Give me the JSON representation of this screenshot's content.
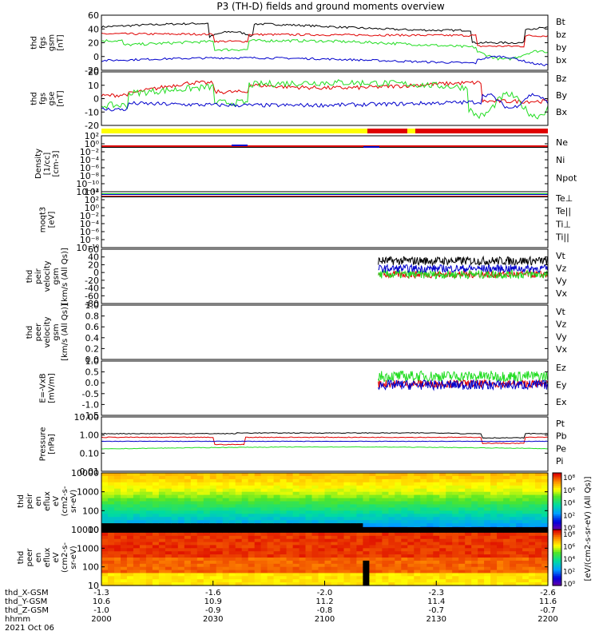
{
  "title": "P3 (TH-D) fields and ground moments overview",
  "date_label": "2021 Oct 06",
  "colors": {
    "black": "#000000",
    "red": "#e00000",
    "green": "#22dd22",
    "blue": "#0000cc",
    "yellow": "#ffff00"
  },
  "orbit": {
    "row_labels": [
      "thd_X-GSM",
      "thd_Y-GSM",
      "thd_Z-GSM",
      "hhmm"
    ],
    "columns": [
      {
        "x": "-1.3",
        "y": "10.6",
        "z": "-1.0",
        "t": "2000"
      },
      {
        "x": "-1.6",
        "y": "10.9",
        "z": "-0.9",
        "t": "2030"
      },
      {
        "x": "-2.0",
        "y": "11.2",
        "z": "-0.8",
        "t": "2100"
      },
      {
        "x": "-2.3",
        "y": "11.4",
        "z": "-0.7",
        "t": "2130"
      },
      {
        "x": "-2.6",
        "y": "11.6",
        "z": "-0.7",
        "t": "2200"
      }
    ]
  },
  "chart_data": [
    {
      "type": "line",
      "id": "fgs_gsm",
      "ylabel": [
        "thd",
        "fgs",
        "gsm",
        "[nT]"
      ],
      "ylim": [
        -20,
        60
      ],
      "ticks": [
        "60",
        "40",
        "20",
        "0",
        "-20"
      ],
      "legend": [
        {
          "name": "Bt",
          "color": "#000000"
        },
        {
          "name": "bz",
          "color": "#e00000"
        },
        {
          "name": "by",
          "color": "#22dd22"
        },
        {
          "name": "bx",
          "color": "#0000cc"
        }
      ]
    },
    {
      "type": "line",
      "id": "fgs_gse",
      "ylabel": [
        "thd",
        "fgs",
        "gse",
        "[nT]"
      ],
      "ylim": [
        -20,
        20
      ],
      "ticks": [
        "20",
        "10",
        "0",
        "-10",
        "-20"
      ],
      "legend": [
        {
          "name": "Bz",
          "color": "#e00000"
        },
        {
          "name": "By",
          "color": "#22dd22"
        },
        {
          "name": "Bx",
          "color": "#0000cc"
        }
      ]
    },
    {
      "type": "line",
      "id": "density",
      "ylabel": [
        "Density",
        "[1/cc]",
        "[cm-3]"
      ],
      "scale": "log",
      "ticks": [
        "10²",
        "10⁰",
        "10⁻²",
        "10⁻⁴",
        "10⁻⁶",
        "10⁻⁸",
        "10⁻¹⁰",
        "10⁻¹²"
      ],
      "legend": [
        {
          "name": "Ne",
          "color": "#e00000"
        },
        {
          "name": "Ni",
          "color": "#000000"
        },
        {
          "name": "Npot",
          "color": "#0000cc"
        }
      ]
    },
    {
      "type": "line",
      "id": "temperature",
      "ylabel": [
        "moqt3",
        "[eV]"
      ],
      "scale": "log",
      "ticks": [
        "10⁴",
        "10²",
        "10⁰",
        "10⁻²",
        "10⁻⁴",
        "10⁻⁶",
        "10⁻⁸",
        "10⁻¹⁰"
      ],
      "legend": [
        {
          "name": "Te⊥",
          "color": "#e00000"
        },
        {
          "name": "Te||",
          "color": "#000000"
        },
        {
          "name": "Ti⊥",
          "color": "#0000cc"
        },
        {
          "name": "Ti||",
          "color": "#22dd22"
        }
      ]
    },
    {
      "type": "line",
      "id": "ion_velocity",
      "ylabel": [
        "thd",
        "peir",
        "velocity",
        "gsm",
        "[km/s (All Qs)]"
      ],
      "ylim": [
        -80,
        60
      ],
      "ticks": [
        "60",
        "40",
        "20",
        "0",
        "-20",
        "-40",
        "-60",
        "-80"
      ],
      "legend": [
        {
          "name": "Vt",
          "color": "#000000"
        },
        {
          "name": "Vz",
          "color": "#e00000"
        },
        {
          "name": "Vy",
          "color": "#22dd22"
        },
        {
          "name": "Vx",
          "color": "#0000cc"
        }
      ]
    },
    {
      "type": "line",
      "id": "electron_velocity",
      "ylabel": [
        "thd",
        "peer",
        "velocity",
        "gsm",
        "[km/s (All Qs)]"
      ],
      "ylim": [
        0,
        1
      ],
      "ticks": [
        "1.0",
        "0.8",
        "0.6",
        "0.4",
        "0.2",
        "0.0"
      ],
      "legend": [
        {
          "name": "Vt",
          "color": "#000000"
        },
        {
          "name": "Vz",
          "color": "#e00000"
        },
        {
          "name": "Vy",
          "color": "#22dd22"
        },
        {
          "name": "Vx",
          "color": "#0000cc"
        }
      ]
    },
    {
      "type": "line",
      "id": "efield",
      "ylabel": [
        "E=-VxB",
        "[mV/m]"
      ],
      "ylim": [
        -1.5,
        1.0
      ],
      "ticks": [
        "1.0",
        "0.5",
        "0.0",
        "-0.5",
        "-1.0",
        "-1.5"
      ],
      "legend": [
        {
          "name": "Ez",
          "color": "#e00000"
        },
        {
          "name": "Ey",
          "color": "#22dd22"
        },
        {
          "name": "Ex",
          "color": "#0000cc"
        }
      ]
    },
    {
      "type": "line",
      "id": "pressure",
      "ylabel": [
        "Pressure",
        "[nPa]"
      ],
      "scale": "log",
      "ylim": [
        0.01,
        10
      ],
      "ticks": [
        "10.00",
        "1.00",
        "0.10",
        "0.01"
      ],
      "legend": [
        {
          "name": "Pt",
          "color": "#000000"
        },
        {
          "name": "Pb",
          "color": "#e00000"
        },
        {
          "name": "Pe",
          "color": "#22dd22"
        },
        {
          "name": "Pi",
          "color": "#0000cc"
        }
      ]
    },
    {
      "type": "heatmap",
      "id": "ion_eflux",
      "ylabel": [
        "thd",
        "peir",
        "en",
        "eflux",
        "eV",
        "(cm2-s-",
        "sr-eV)"
      ],
      "scale": "log",
      "ticks": [
        "10000",
        "1000",
        "100",
        "10"
      ]
    },
    {
      "type": "heatmap",
      "id": "electron_eflux",
      "ylabel": [
        "thd",
        "peer",
        "en",
        "eflux",
        "eV",
        "(cm2-s-",
        "sr-eV)"
      ],
      "scale": "log",
      "ticks": [
        "10000",
        "1000",
        "100",
        "10"
      ]
    }
  ],
  "colorbar": {
    "ticks_upper": [
      "10⁸",
      "10⁶",
      "10⁴",
      "10²",
      "10⁰"
    ],
    "ticks_lower": [
      "10⁸",
      "10⁶",
      "10⁴",
      "10²",
      "10⁰"
    ],
    "label": "[eV/(cm2-s-sr-eV) (All Qs)]"
  }
}
